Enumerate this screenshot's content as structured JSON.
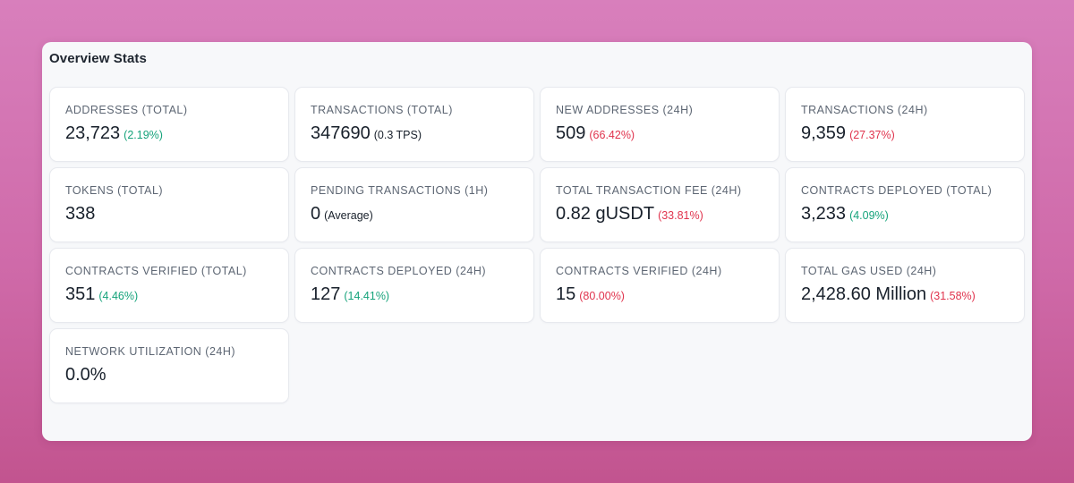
{
  "panel": {
    "title": "Overview Stats"
  },
  "colors": {
    "positive": "#16a37b",
    "negative": "#e0334d",
    "neutral": "#18202b"
  },
  "cards": [
    {
      "label": "ADDRESSES (TOTAL)",
      "value": "23,723",
      "delta": "(2.19%)",
      "trend": "up"
    },
    {
      "label": "TRANSACTIONS (TOTAL)",
      "value": "347690",
      "delta": "(0.3 TPS)",
      "trend": "neutral"
    },
    {
      "label": "NEW ADDRESSES (24H)",
      "value": "509",
      "delta": "(66.42%)",
      "trend": "down"
    },
    {
      "label": "TRANSACTIONS (24H)",
      "value": "9,359",
      "delta": "(27.37%)",
      "trend": "down"
    },
    {
      "label": "TOKENS (TOTAL)",
      "value": "338",
      "delta": "",
      "trend": "neutral"
    },
    {
      "label": "PENDING TRANSACTIONS (1H)",
      "value": "0",
      "delta": "(Average)",
      "trend": "neutral"
    },
    {
      "label": "TOTAL TRANSACTION FEE (24H)",
      "value": "0.82 gUSDT",
      "delta": "(33.81%)",
      "trend": "down"
    },
    {
      "label": "CONTRACTS DEPLOYED (TOTAL)",
      "value": "3,233",
      "delta": "(4.09%)",
      "trend": "up"
    },
    {
      "label": "CONTRACTS VERIFIED (TOTAL)",
      "value": "351",
      "delta": "(4.46%)",
      "trend": "up"
    },
    {
      "label": "CONTRACTS DEPLOYED (24H)",
      "value": "127",
      "delta": "(14.41%)",
      "trend": "up"
    },
    {
      "label": "CONTRACTS VERIFIED (24H)",
      "value": "15",
      "delta": "(80.00%)",
      "trend": "down"
    },
    {
      "label": "TOTAL GAS USED (24H)",
      "value": "2,428.60 Million",
      "delta": "(31.58%)",
      "trend": "down"
    },
    {
      "label": "NETWORK UTILIZATION (24H)",
      "value": "0.0%",
      "delta": "",
      "trend": "neutral"
    }
  ]
}
